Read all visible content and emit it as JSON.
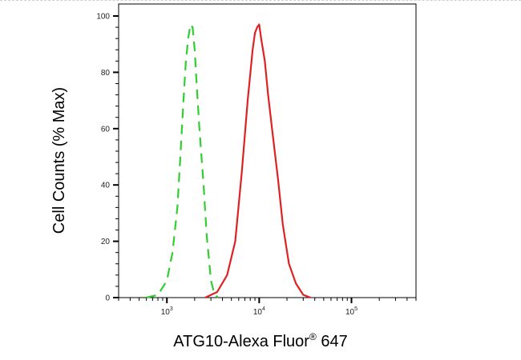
{
  "chart_data": {
    "type": "line",
    "title": "",
    "xlabel": "ATG10-Alexa Fluor",
    "xlabel_mark": "®",
    "xlabel_suffix": " 647",
    "ylabel": "Cell Counts (% Max)",
    "x_scale": "log",
    "xlim": [
      300,
      500000
    ],
    "ylim": [
      0,
      100
    ],
    "x_ticks": [
      {
        "value": 1000,
        "base": "10",
        "exp": "3"
      },
      {
        "value": 10000,
        "base": "10",
        "exp": "4"
      },
      {
        "value": 100000,
        "base": "10",
        "exp": "5"
      }
    ],
    "y_ticks": [
      "0",
      "20",
      "40",
      "60",
      "80",
      "100"
    ],
    "grid": false,
    "legend": "none",
    "series": [
      {
        "color": "#33cc33",
        "style": "dashed",
        "x": [
          600,
          800,
          1000,
          1150,
          1300,
          1400,
          1500,
          1600,
          1700,
          1800,
          1900,
          2000,
          2100,
          2250,
          2500,
          2700,
          3000,
          3300,
          3600
        ],
        "y": [
          0,
          1,
          6,
          16,
          32,
          50,
          68,
          83,
          92,
          97,
          96,
          88,
          76,
          60,
          40,
          22,
          6,
          1,
          0
        ]
      },
      {
        "color": "#dd2222",
        "style": "solid",
        "x": [
          2600,
          3500,
          4500,
          5500,
          6500,
          7500,
          8500,
          9000,
          9500,
          10000,
          10500,
          11500,
          12500,
          14000,
          16000,
          18000,
          21000,
          25000,
          30000,
          36000
        ],
        "y": [
          0,
          2,
          8,
          20,
          45,
          70,
          88,
          94,
          96,
          97,
          92,
          84,
          72,
          58,
          42,
          26,
          12,
          5,
          1,
          0
        ]
      }
    ]
  }
}
